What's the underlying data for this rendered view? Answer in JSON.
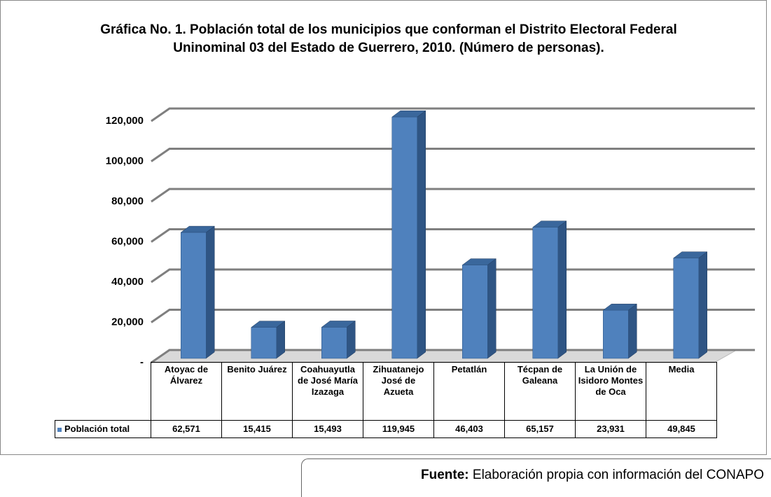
{
  "chart_data": {
    "type": "bar3d",
    "title": "Gráfica No. 1. Población total de los municipios que conforman el Distrito Electoral Federal Uninominal 03 del Estado de Guerrero, 2010. (Número de personas).",
    "categories": [
      "Atoyac de Álvarez",
      "Benito Juárez",
      "Coahuayutla de José María Izazaga",
      "Zihuatanejo José de Azueta",
      "Petatlán",
      "Técpan de Galeana",
      "La Unión de Isidoro Montes de Oca",
      "Media"
    ],
    "series": [
      {
        "name": "Población total",
        "color": "#4f81bd",
        "values": [
          62571,
          15415,
          15493,
          119945,
          46403,
          65157,
          23931,
          49845
        ],
        "value_labels": [
          "62,571",
          "15,415",
          "15,493",
          "119,945",
          "46,403",
          "65,157",
          "23,931",
          "49,845"
        ]
      }
    ],
    "ylim": [
      0,
      120000
    ],
    "yticks": [
      {
        "value": 0,
        "label": "-"
      },
      {
        "value": 20000,
        "label": "20,000"
      },
      {
        "value": 40000,
        "label": "40,000"
      },
      {
        "value": 60000,
        "label": "60,000"
      },
      {
        "value": 80000,
        "label": "80,000"
      },
      {
        "value": 100000,
        "label": "100,000"
      },
      {
        "value": 120000,
        "label": "120,000"
      }
    ],
    "grid": true
  },
  "source": {
    "label": "Fuente:",
    "text": "Elaboración propia con información del CONAPO"
  }
}
